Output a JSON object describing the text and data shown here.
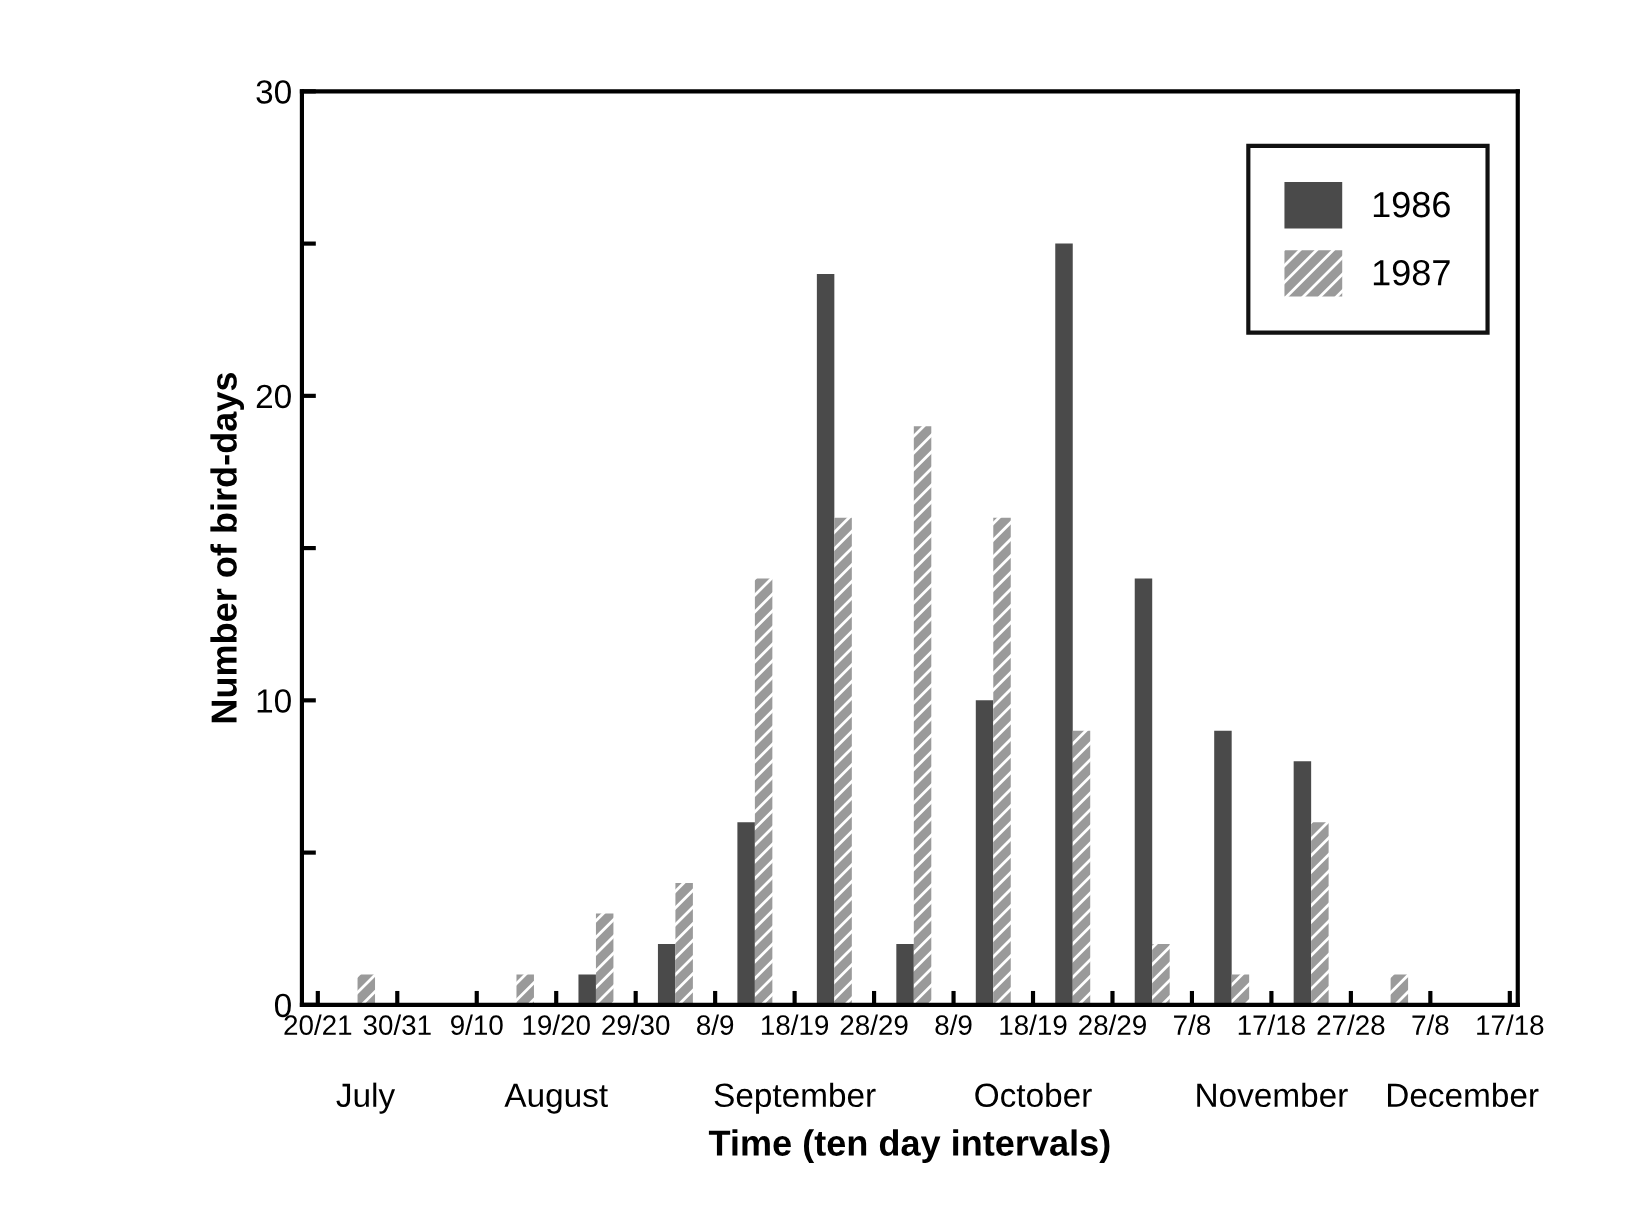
{
  "chart_data": {
    "type": "bar",
    "xlabel": "Time (ten day intervals)",
    "ylabel": "Number of bird-days",
    "categories": [
      null,
      null,
      null,
      null,
      null,
      null,
      null,
      null,
      null,
      null,
      null,
      null,
      null,
      null,
      null
    ],
    "annotations": [
      "20/21",
      "30/31",
      "9/10",
      "19/20",
      "29/30",
      "8/9",
      "18/19",
      "28/29",
      "8/9",
      "18/19",
      "28/29",
      "7/8",
      "17/18",
      "27/28",
      "7/8",
      "17/18",
      "July",
      "August",
      "September",
      "October",
      "November",
      "December"
    ],
    "series": [
      {
        "name": "1986",
        "color": "#4a4a4a",
        "values": [
          0,
          0,
          0,
          1,
          2,
          6,
          24,
          2,
          10,
          25,
          14,
          9,
          8,
          0,
          0
        ]
      },
      {
        "name": "1987",
        "color": "#9a9a9a",
        "values": [
          1,
          0,
          1,
          3,
          4,
          14,
          16,
          19,
          16,
          9,
          2,
          1,
          6,
          1,
          0
        ]
      }
    ],
    "ylim": [
      0,
      30
    ],
    "yticks": [
      0,
      {
        "value": 5,
        "label": null
      },
      10,
      {
        "value": 15,
        "label": null
      },
      20,
      {
        "value": 25,
        "label": null
      },
      30
    ],
    "legend": "top right",
    "grid": false
  }
}
